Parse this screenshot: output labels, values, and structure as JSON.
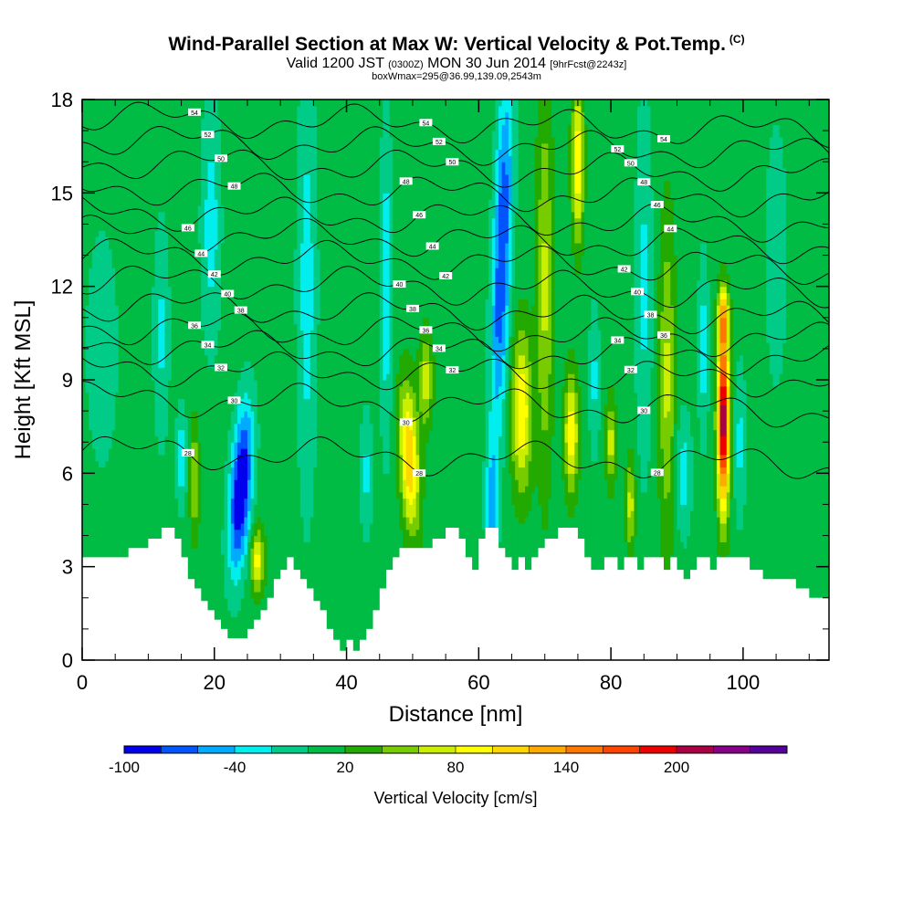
{
  "header": {
    "title": "Wind-Parallel Section at Max W: Vertical Velocity & Pot.Temp.",
    "copyright": "(C)",
    "valid_prefix": "Valid 1200 JST",
    "valid_zulu": "(0300Z)",
    "valid_date": "MON 30 Jun 2014",
    "forecast": "[9hrFcst@2243z]",
    "boxwmax": "boxWmax=295@36.99,139.09,2543m"
  },
  "chart_data": {
    "type": "heatmap",
    "xlabel": "Distance [nm]",
    "ylabel": "Height [Kft MSL]",
    "xlim": [
      0,
      113
    ],
    "ylim": [
      0,
      18
    ],
    "x_ticks": [
      0,
      20,
      40,
      60,
      80,
      100
    ],
    "y_ticks": [
      0,
      3,
      6,
      9,
      12,
      15,
      18
    ],
    "colorbar": {
      "label": "Vertical Velocity [cm/s]",
      "bins": [
        -100,
        -80,
        -60,
        -40,
        -20,
        0,
        20,
        40,
        60,
        80,
        100,
        120,
        140,
        160,
        180,
        200,
        220,
        240
      ],
      "tick_labels": [
        -100,
        -40,
        20,
        80,
        140,
        200
      ],
      "colors": [
        "#0000ee",
        "#0055ff",
        "#00aaff",
        "#00eeee",
        "#00cc88",
        "#00bb44",
        "#22aa00",
        "#77cc00",
        "#ccee00",
        "#ffff00",
        "#ffd700",
        "#ffaa00",
        "#ff7700",
        "#ff4400",
        "#ee0000",
        "#aa0044",
        "#880088",
        "#550099"
      ]
    },
    "background_w": 10,
    "terrain": [
      [
        0,
        3.3
      ],
      [
        7,
        3.3
      ],
      [
        7,
        3.6
      ],
      [
        10,
        3.6
      ],
      [
        10,
        3.9
      ],
      [
        12,
        3.9
      ],
      [
        12,
        4.25
      ],
      [
        14,
        4.25
      ],
      [
        14,
        3.9
      ],
      [
        15,
        3.9
      ],
      [
        15,
        3.3
      ],
      [
        16,
        3.3
      ],
      [
        16,
        2.6
      ],
      [
        17,
        2.6
      ],
      [
        17,
        2.3
      ],
      [
        18,
        2.3
      ],
      [
        18,
        1.9
      ],
      [
        19,
        1.9
      ],
      [
        19,
        1.6
      ],
      [
        20,
        1.6
      ],
      [
        20,
        1.3
      ],
      [
        21,
        1.3
      ],
      [
        21,
        1.0
      ],
      [
        22,
        1.0
      ],
      [
        22,
        0.7
      ],
      [
        25,
        0.7
      ],
      [
        25,
        1.0
      ],
      [
        26,
        1.0
      ],
      [
        26,
        1.3
      ],
      [
        27,
        1.3
      ],
      [
        27,
        1.6
      ],
      [
        28,
        1.6
      ],
      [
        28,
        2.0
      ],
      [
        29,
        2.0
      ],
      [
        29,
        2.6
      ],
      [
        30,
        2.6
      ],
      [
        30,
        2.9
      ],
      [
        31,
        2.9
      ],
      [
        31,
        3.3
      ],
      [
        32,
        3.3
      ],
      [
        32,
        2.9
      ],
      [
        33,
        2.9
      ],
      [
        33,
        2.6
      ],
      [
        34,
        2.6
      ],
      [
        34,
        2.3
      ],
      [
        35,
        2.3
      ],
      [
        35,
        1.9
      ],
      [
        36,
        1.9
      ],
      [
        36,
        1.6
      ],
      [
        37,
        1.6
      ],
      [
        37,
        1.0
      ],
      [
        38,
        1.0
      ],
      [
        38,
        0.65
      ],
      [
        39,
        0.65
      ],
      [
        39,
        0.3
      ],
      [
        40,
        0.3
      ],
      [
        40,
        0.65
      ],
      [
        41,
        0.65
      ],
      [
        41,
        0.3
      ],
      [
        42,
        0.3
      ],
      [
        42,
        0.65
      ],
      [
        43,
        0.65
      ],
      [
        43,
        1.0
      ],
      [
        44,
        1.0
      ],
      [
        44,
        1.6
      ],
      [
        45,
        1.6
      ],
      [
        45,
        2.3
      ],
      [
        46,
        2.3
      ],
      [
        46,
        2.9
      ],
      [
        47,
        2.9
      ],
      [
        47,
        3.3
      ],
      [
        48,
        3.3
      ],
      [
        48,
        3.6
      ],
      [
        53,
        3.6
      ],
      [
        53,
        3.9
      ],
      [
        55,
        3.9
      ],
      [
        55,
        4.25
      ],
      [
        57,
        4.25
      ],
      [
        57,
        3.9
      ],
      [
        58,
        3.9
      ],
      [
        58,
        3.3
      ],
      [
        59,
        3.3
      ],
      [
        59,
        2.9
      ],
      [
        60,
        2.9
      ],
      [
        60,
        3.9
      ],
      [
        61,
        3.9
      ],
      [
        61,
        4.25
      ],
      [
        63,
        4.25
      ],
      [
        63,
        3.6
      ],
      [
        64,
        3.6
      ],
      [
        64,
        3.3
      ],
      [
        65,
        3.3
      ],
      [
        65,
        2.9
      ],
      [
        66,
        2.9
      ],
      [
        66,
        3.3
      ],
      [
        67,
        3.3
      ],
      [
        67,
        2.9
      ],
      [
        68,
        2.9
      ],
      [
        68,
        3.3
      ],
      [
        69,
        3.3
      ],
      [
        69,
        3.6
      ],
      [
        70,
        3.6
      ],
      [
        70,
        3.9
      ],
      [
        72,
        3.9
      ],
      [
        72,
        4.25
      ],
      [
        75,
        4.25
      ],
      [
        75,
        3.9
      ],
      [
        76,
        3.9
      ],
      [
        76,
        3.3
      ],
      [
        77,
        3.3
      ],
      [
        77,
        2.9
      ],
      [
        79,
        2.9
      ],
      [
        79,
        3.3
      ],
      [
        81,
        3.3
      ],
      [
        81,
        2.9
      ],
      [
        82,
        2.9
      ],
      [
        82,
        3.3
      ],
      [
        84,
        3.3
      ],
      [
        84,
        2.9
      ],
      [
        85,
        2.9
      ],
      [
        85,
        3.3
      ],
      [
        88,
        3.3
      ],
      [
        88,
        2.9
      ],
      [
        89,
        2.9
      ],
      [
        89,
        3.3
      ],
      [
        90,
        3.3
      ],
      [
        90,
        2.9
      ],
      [
        91,
        2.9
      ],
      [
        91,
        2.6
      ],
      [
        92,
        2.6
      ],
      [
        92,
        2.9
      ],
      [
        93,
        2.9
      ],
      [
        93,
        3.3
      ],
      [
        95,
        3.3
      ],
      [
        95,
        2.9
      ],
      [
        96,
        2.9
      ],
      [
        96,
        3.3
      ],
      [
        101,
        3.3
      ],
      [
        101,
        2.9
      ],
      [
        103,
        2.9
      ],
      [
        103,
        2.6
      ],
      [
        108,
        2.6
      ],
      [
        108,
        2.3
      ],
      [
        110,
        2.3
      ],
      [
        110,
        2.0
      ],
      [
        113,
        2.0
      ],
      [
        113,
        0
      ],
      [
        0,
        0
      ]
    ],
    "w_features": [
      {
        "x": 24,
        "z": 5.5,
        "sx": 1.6,
        "sz": 2.6,
        "tilt": 0.28,
        "w": -120
      },
      {
        "x": 26.5,
        "z": 3.2,
        "sx": 1.0,
        "sz": 1.0,
        "tilt": 0,
        "w": 80
      },
      {
        "x": 17,
        "z": 5.8,
        "sx": 0.7,
        "sz": 1.8,
        "tilt": 0,
        "w": 55
      },
      {
        "x": 15,
        "z": 6.5,
        "sx": 0.8,
        "sz": 1.5,
        "tilt": 0,
        "w": -50
      },
      {
        "x": 12,
        "z": 10.5,
        "sx": 1.2,
        "sz": 3.5,
        "tilt": 0,
        "w": -35
      },
      {
        "x": 19.5,
        "z": 14,
        "sx": 1.5,
        "sz": 4,
        "tilt": 0,
        "w": -40
      },
      {
        "x": 34,
        "z": 12,
        "sx": 1.5,
        "sz": 7,
        "tilt": 0,
        "w": -40
      },
      {
        "x": 49.5,
        "z": 6.5,
        "sx": 1.4,
        "sz": 2.3,
        "tilt": -0.18,
        "w": 110
      },
      {
        "x": 52,
        "z": 9,
        "sx": 1.0,
        "sz": 1.5,
        "tilt": 0,
        "w": 60
      },
      {
        "x": 46,
        "z": 12,
        "sx": 1.0,
        "sz": 5,
        "tilt": 0,
        "w": -45
      },
      {
        "x": 43,
        "z": 6,
        "sx": 1.0,
        "sz": 2,
        "tilt": 0,
        "w": -35
      },
      {
        "x": 62,
        "z": 5,
        "sx": 0.9,
        "sz": 1.8,
        "tilt": 0,
        "w": -55
      },
      {
        "x": 63.5,
        "z": 13,
        "sx": 1.4,
        "sz": 6,
        "tilt": 0.15,
        "w": -90
      },
      {
        "x": 66.5,
        "z": 8,
        "sx": 1.5,
        "sz": 2.5,
        "tilt": 0,
        "w": 90
      },
      {
        "x": 70,
        "z": 12,
        "sx": 1.2,
        "sz": 6,
        "tilt": 0,
        "w": 55
      },
      {
        "x": 74,
        "z": 7.3,
        "sx": 1.0,
        "sz": 1.8,
        "tilt": 0,
        "w": 90
      },
      {
        "x": 75,
        "z": 16,
        "sx": 0.9,
        "sz": 2.5,
        "tilt": 0,
        "w": 90
      },
      {
        "x": 77.5,
        "z": 9,
        "sx": 0.8,
        "sz": 2.5,
        "tilt": 0,
        "w": -35
      },
      {
        "x": 80,
        "z": 7,
        "sx": 0.7,
        "sz": 1.4,
        "tilt": 0,
        "w": 60
      },
      {
        "x": 83,
        "z": 5,
        "sx": 0.7,
        "sz": 1.5,
        "tilt": 0,
        "w": 60
      },
      {
        "x": 85,
        "z": 12,
        "sx": 1.3,
        "sz": 6,
        "tilt": 0,
        "w": -35
      },
      {
        "x": 88.5,
        "z": 9,
        "sx": 1.2,
        "sz": 5,
        "tilt": 0,
        "w": 55
      },
      {
        "x": 91,
        "z": 6,
        "sx": 1.2,
        "sz": 2,
        "tilt": 0,
        "w": -40
      },
      {
        "x": 94,
        "z": 10,
        "sx": 0.8,
        "sz": 3,
        "tilt": 0,
        "w": -40
      },
      {
        "x": 97,
        "z": 7.7,
        "sx": 0.9,
        "sz": 2.8,
        "tilt": 0,
        "w": 210
      },
      {
        "x": 97,
        "z": 11,
        "sx": 0.8,
        "sz": 1.0,
        "tilt": 0,
        "w": 90
      },
      {
        "x": 99.5,
        "z": 7,
        "sx": 1.0,
        "sz": 2.5,
        "tilt": 0,
        "w": -35
      },
      {
        "x": 105,
        "z": 13,
        "sx": 2.0,
        "sz": 5,
        "tilt": 0,
        "w": -20
      },
      {
        "x": 3,
        "z": 10,
        "sx": 2.5,
        "sz": 4,
        "tilt": 0,
        "w": -25
      }
    ],
    "theta_contours": [
      {
        "base": 6.5,
        "label": "28"
      },
      {
        "base": 8.2,
        "label": "30"
      },
      {
        "base": 9.2,
        "label": "32"
      },
      {
        "base": 9.9,
        "label": "34"
      },
      {
        "base": 10.5,
        "label": "36"
      },
      {
        "base": 11.2,
        "label": "38"
      },
      {
        "base": 12.0,
        "label": "40"
      },
      {
        "base": 12.8,
        "label": "42"
      },
      {
        "base": 13.5,
        "label": "44"
      },
      {
        "base": 14.2,
        "label": "46"
      },
      {
        "base": 15.0,
        "label": "48"
      },
      {
        "base": 15.8,
        "label": "50"
      },
      {
        "base": 16.5,
        "label": "52"
      },
      {
        "base": 17.2,
        "label": "54"
      }
    ]
  }
}
